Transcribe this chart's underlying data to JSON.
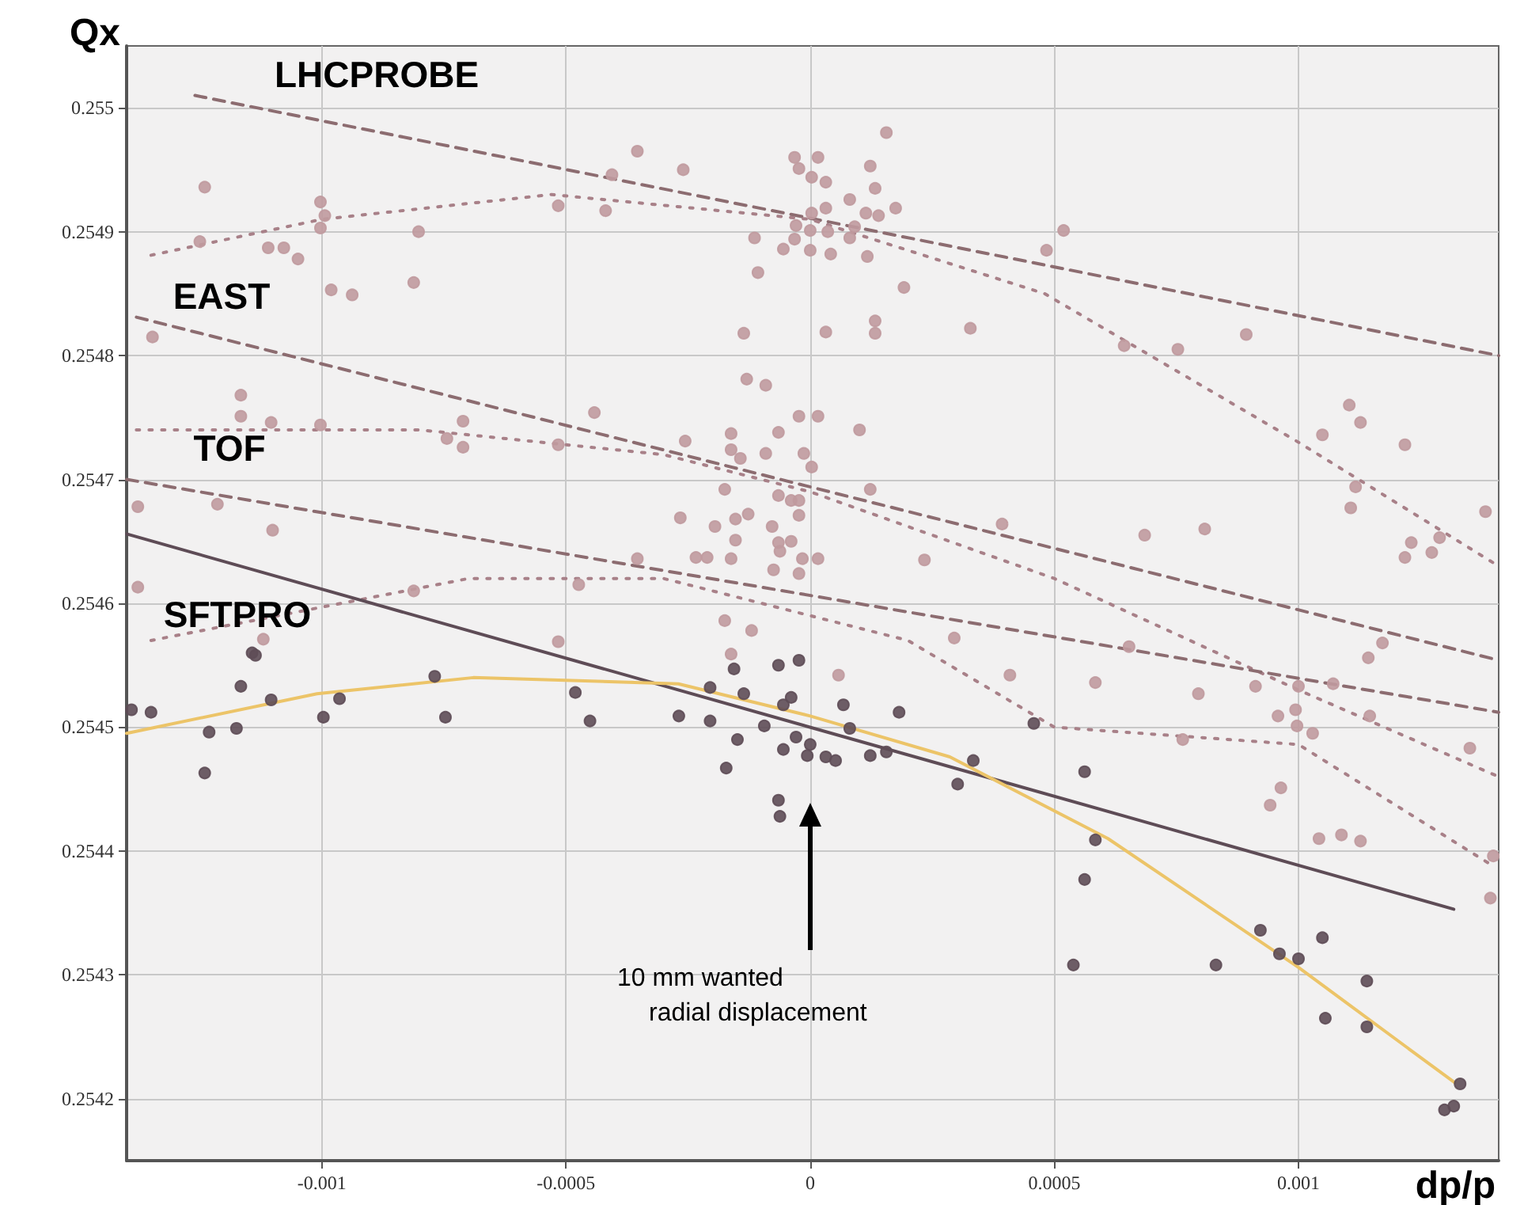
{
  "chart_data": {
    "type": "scatter",
    "xlabel": "dp/p",
    "ylabel": "Qx",
    "xlim": [
      -0.0014,
      0.00141
    ],
    "ylim": [
      0.25415,
      0.25505
    ],
    "xticks": [
      -0.001,
      -0.0005,
      0,
      0.0005,
      0.001
    ],
    "yticks": [
      0.2542,
      0.2543,
      0.2544,
      0.2545,
      0.2546,
      0.2547,
      0.2548,
      0.2549,
      0.255
    ],
    "grid": true,
    "series": [
      {
        "marker": "circle",
        "color": "#c09a9e",
        "x": [
          -0.00124,
          -0.00125,
          -0.001347,
          -0.00111,
          -0.001078,
          -0.001049,
          -0.001003,
          -0.000994,
          -0.001003,
          -0.000981,
          -0.000938,
          -0.000802,
          -0.000812,
          -0.000516,
          -0.000419,
          -0.000354,
          -0.000406,
          -0.00026,
          -0.000114,
          -0.000107,
          -0.000136,
          -0.00013,
          -0.001166,
          -0.001166,
          -0.001104,
          -0.001003,
          -0.000711,
          -0.000711,
          -0.000744,
          -0.000442,
          -0.000516,
          -0.000256,
          -0.000162,
          -0.000162,
          -0.000143,
          -0.000175,
          -0.001377,
          -0.001214,
          -0.001101,
          -0.000266,
          -0.000195,
          -0.000153,
          -0.000127,
          -0.000153,
          -0.000234,
          -0.000211,
          -0.000162,
          -0.000354,
          -0.000474,
          -0.001377,
          -0.000812,
          -0.000516,
          -0.00112,
          -0.000175,
          -0.000162,
          -0.00012,
          0.000156,
          -3.2e-05,
          1.6e-05,
          -2.3e-05,
          3e-06,
          3.2e-05,
          0.000123,
          0.000133,
          8.1e-05,
          3.2e-05,
          3e-06,
          0.000175,
          0.000114,
          0.00014,
          -2.9e-05,
          0,
          3.6e-05,
          9.1e-05,
          8.1e-05,
          -3.2e-05,
          -5.5e-05,
          0,
          4.2e-05,
          0.000117,
          0.000192,
          0.000519,
          0.000484,
          3.2e-05,
          0.000133,
          0.000133,
          0.000328,
          0.000643,
          0.000753,
          0.000893,
          -9.1e-05,
          -2.3e-05,
          1.6e-05,
          0.000101,
          -6.5e-05,
          -9.1e-05,
          -1.3e-05,
          3e-06,
          0.000123,
          -3.9e-05,
          -6.5e-05,
          -2.3e-05,
          -7.8e-05,
          -2.3e-05,
          -6.5e-05,
          -3.9e-05,
          -6.2e-05,
          -1.6e-05,
          1.6e-05,
          -7.5e-05,
          -2.3e-05,
          0.000393,
          0.000234,
          0.000685,
          0.000808,
          0.001049,
          0.001104,
          0.001127,
          0.001218,
          0.001117,
          0.001107,
          0.001383,
          0.001289,
          0.001231,
          0.001218,
          0.001273,
          5.8e-05,
          0.000409,
          0.000584,
          0.000295,
          0.000653,
          0.000795,
          0.000912,
          0.001143,
          0.001172,
          0.001071,
          0.001,
          0.000994,
          0.000997,
          0.000958,
          0.001029,
          0.000763,
          0.001146,
          0.001351,
          0.000964,
          0.000942,
          0.001042,
          0.001088,
          0.001127,
          0.001399,
          0.001393
        ],
        "values": [
          0.254936,
          0.254892,
          0.254815,
          0.254887,
          0.254887,
          0.254878,
          0.254924,
          0.254913,
          0.254903,
          0.254853,
          0.254849,
          0.2549,
          0.254859,
          0.254921,
          0.254917,
          0.254965,
          0.254946,
          0.25495,
          0.254895,
          0.254867,
          0.254818,
          0.254781,
          0.254768,
          0.254751,
          0.254746,
          0.254744,
          0.254747,
          0.254726,
          0.254733,
          0.254754,
          0.254728,
          0.254731,
          0.254737,
          0.254724,
          0.254717,
          0.254692,
          0.254678,
          0.25468,
          0.254659,
          0.254669,
          0.254662,
          0.254668,
          0.254672,
          0.254651,
          0.254637,
          0.254637,
          0.254636,
          0.254636,
          0.254615,
          0.254613,
          0.25461,
          0.254569,
          0.254571,
          0.254586,
          0.254559,
          0.254578,
          0.25498,
          0.25496,
          0.25496,
          0.254951,
          0.254944,
          0.25494,
          0.254953,
          0.254935,
          0.254926,
          0.254919,
          0.254915,
          0.254919,
          0.254915,
          0.254913,
          0.254905,
          0.254901,
          0.2549,
          0.254904,
          0.254895,
          0.254894,
          0.254886,
          0.254885,
          0.254882,
          0.25488,
          0.254855,
          0.254901,
          0.254885,
          0.254819,
          0.254828,
          0.254818,
          0.254822,
          0.254808,
          0.254805,
          0.254817,
          0.254776,
          0.254751,
          0.254751,
          0.25474,
          0.254738,
          0.254721,
          0.254721,
          0.25471,
          0.254692,
          0.254683,
          0.254687,
          0.254683,
          0.254662,
          0.254671,
          0.254649,
          0.25465,
          0.254642,
          0.254636,
          0.254636,
          0.254627,
          0.254624,
          0.254664,
          0.254635,
          0.254655,
          0.25466,
          0.254736,
          0.25476,
          0.254746,
          0.254728,
          0.254694,
          0.254677,
          0.254674,
          0.254653,
          0.254649,
          0.254637,
          0.254641,
          0.254542,
          0.254542,
          0.254536,
          0.254572,
          0.254565,
          0.254527,
          0.254533,
          0.254556,
          0.254568,
          0.254535,
          0.254533,
          0.254514,
          0.254501,
          0.254509,
          0.254495,
          0.25449,
          0.254509,
          0.254483,
          0.254451,
          0.254437,
          0.25441,
          0.254413,
          0.254408,
          0.254396,
          0.254362
        ]
      },
      {
        "marker": "circle",
        "color": "#5e4c56",
        "x": [
          -0.00139,
          -0.00135,
          -0.001231,
          -0.00124,
          -0.001175,
          -0.001166,
          -0.001143,
          -0.001136,
          -0.001104,
          -0.000997,
          -0.000964,
          -0.000769,
          -0.000747,
          -0.000481,
          -0.000451,
          -0.000269,
          -0.000205,
          -0.000205,
          -0.000172,
          -0.000149,
          -0.000136,
          -0.000156,
          -6.5e-05,
          -2.3e-05,
          -3.9e-05,
          -5.5e-05,
          -9.4e-05,
          -2.9e-05,
          0,
          -5.5e-05,
          -6e-06,
          3.2e-05,
          5.2e-05,
          6.8e-05,
          8.1e-05,
          0.000123,
          0.000156,
          0.000182,
          -6.5e-05,
          -6.2e-05,
          0.000302,
          0.000334,
          0.000458,
          0.000562,
          0.000584,
          0.000562,
          0.000539,
          0.000831,
          0.000922,
          0.000961,
          0.001,
          0.001049,
          0.001055,
          0.00114,
          0.00114,
          0.001331,
          0.001299,
          0.001318
        ],
        "values": [
          0.254514,
          0.254512,
          0.254496,
          0.254463,
          0.254499,
          0.254533,
          0.25456,
          0.254558,
          0.254522,
          0.254508,
          0.254523,
          0.254541,
          0.254508,
          0.254528,
          0.254505,
          0.254509,
          0.254532,
          0.254505,
          0.254467,
          0.25449,
          0.254527,
          0.254547,
          0.25455,
          0.254554,
          0.254524,
          0.254518,
          0.254501,
          0.254492,
          0.254486,
          0.254482,
          0.254477,
          0.254476,
          0.254473,
          0.254518,
          0.254499,
          0.254477,
          0.25448,
          0.254512,
          0.254441,
          0.254428,
          0.254454,
          0.254473,
          0.254503,
          0.254464,
          0.254409,
          0.254377,
          0.254308,
          0.254308,
          0.254336,
          0.254317,
          0.254313,
          0.25433,
          0.254265,
          0.254295,
          0.254258,
          0.254212,
          0.254191,
          0.254194
        ]
      },
      {
        "type": "line",
        "marker": "none",
        "line_style": "dashed",
        "color": "#8c6c70",
        "x": [
          -0.00126,
          0.00141
        ],
        "values": [
          0.25501,
          0.2548
        ]
      },
      {
        "type": "line",
        "marker": "none",
        "line_style": "dotted",
        "color": "#a88088",
        "x": [
          -0.00135,
          -0.001,
          -0.00053,
          0,
          0.00048,
          0.001,
          0.00141
        ],
        "values": [
          0.254881,
          0.25491,
          0.25493,
          0.25491,
          0.25485,
          0.25473,
          0.25463
        ]
      },
      {
        "type": "line",
        "marker": "none",
        "line_style": "dashed",
        "color": "#8c6c70",
        "x": [
          -0.00138,
          0.00141
        ],
        "values": [
          0.254831,
          0.254554
        ]
      },
      {
        "type": "line",
        "marker": "none",
        "line_style": "dotted",
        "color": "#a88088",
        "x": [
          -0.00138,
          -0.0008,
          -0.0003,
          0,
          0.0005,
          0.001,
          0.00141
        ],
        "values": [
          0.25474,
          0.25474,
          0.25472,
          0.25469,
          0.25462,
          0.25453,
          0.25446
        ]
      },
      {
        "type": "line",
        "marker": "none",
        "line_style": "dashed",
        "color": "#8c6c70",
        "x": [
          -0.0014,
          0.00141
        ],
        "values": [
          0.2547,
          0.254512
        ]
      },
      {
        "type": "line",
        "marker": "none",
        "line_style": "dotted",
        "color": "#a88088",
        "x": [
          -0.00135,
          -0.0007,
          -0.0003,
          0.0002,
          0.0005,
          0.001,
          0.00139
        ],
        "values": [
          0.25457,
          0.25462,
          0.25462,
          0.25457,
          0.2545,
          0.254486,
          0.25439
        ]
      },
      {
        "type": "line",
        "marker": "none",
        "line_style": "solid",
        "color": "#5e4c56",
        "x": [
          -0.0014,
          0.001318
        ],
        "values": [
          0.254656,
          0.254353
        ]
      },
      {
        "type": "line",
        "marker": "none",
        "line_style": "solid",
        "color": "#ecc468",
        "x": [
          -0.0014,
          -0.00101,
          -0.00069,
          -0.00027,
          0,
          0.000286,
          0.00061,
          0.001,
          0.00132
        ],
        "values": [
          0.254495,
          0.254527,
          0.25454,
          0.254535,
          0.254509,
          0.254476,
          0.25441,
          0.254306,
          0.254213
        ]
      }
    ],
    "annotations": [
      "LHCPROBE",
      "EAST",
      "TOF",
      "SFTPRO",
      "10 mm wanted\nradial displacement"
    ]
  }
}
